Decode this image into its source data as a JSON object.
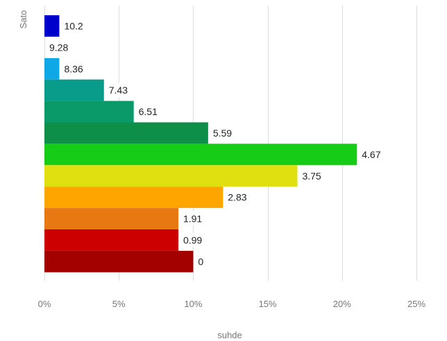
{
  "chart_data": {
    "type": "bar",
    "orientation": "horizontal",
    "xlabel": "suhde",
    "ylabel": "Sato",
    "xlim": [
      0,
      25
    ],
    "x_ticks": [
      0,
      5,
      10,
      15,
      20,
      25
    ],
    "tick_suffix": "%",
    "grid": true,
    "categories": [
      "10.2",
      "9.28",
      "8.36",
      "7.43",
      "6.51",
      "5.59",
      "4.67",
      "3.75",
      "2.83",
      "1.91",
      "0.99",
      "0"
    ],
    "values": [
      1.0,
      0.0,
      1.0,
      4.0,
      6.0,
      11.0,
      21.0,
      17.0,
      12.0,
      9.0,
      9.0,
      10.0
    ],
    "colors": [
      "#0000cc",
      "#1a7fe0",
      "#0fa8e6",
      "#0a9c8a",
      "#0a9a6a",
      "#0d8f4a",
      "#16cc16",
      "#e0e010",
      "#ffa500",
      "#e87812",
      "#cc0000",
      "#a30000"
    ]
  }
}
